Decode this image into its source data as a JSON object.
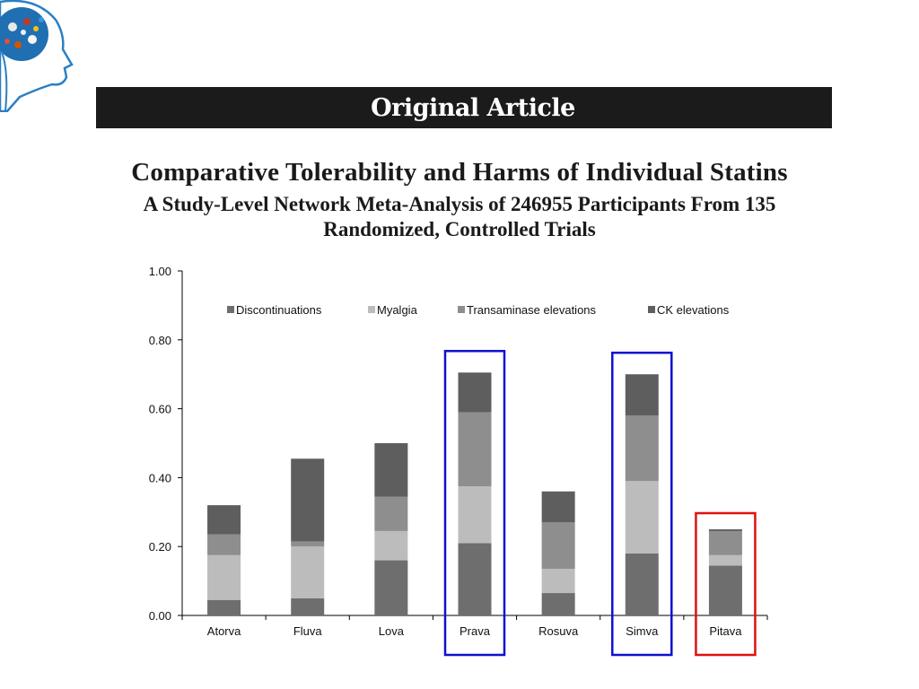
{
  "header": {
    "banner_text": "Original Article",
    "title": "Comparative Tolerability and Harms of Individual Statins",
    "subtitle_line1": "A Study-Level Network Meta-Analysis of 246955 Participants From 135",
    "subtitle_line2": "Randomized, Controlled Trials"
  },
  "highlights": [
    {
      "category": "Prava",
      "color": "#1010d0"
    },
    {
      "category": "Simva",
      "color": "#1010d0"
    },
    {
      "category": "Pitava",
      "color": "#e01010"
    }
  ],
  "chart_data": {
    "type": "bar",
    "stacked": true,
    "categories": [
      "Atorva",
      "Fluva",
      "Lova",
      "Prava",
      "Rosuva",
      "Simva",
      "Pitava"
    ],
    "series": [
      {
        "name": "Discontinuations",
        "color": "#6e6e6e",
        "values": [
          0.045,
          0.05,
          0.16,
          0.21,
          0.065,
          0.18,
          0.145
        ]
      },
      {
        "name": "Myalgia",
        "color": "#bcbcbc",
        "values": [
          0.13,
          0.15,
          0.085,
          0.165,
          0.07,
          0.21,
          0.03
        ]
      },
      {
        "name": "Transaminase elevations",
        "color": "#8e8e8e",
        "values": [
          0.06,
          0.015,
          0.1,
          0.215,
          0.135,
          0.19,
          0.07
        ]
      },
      {
        "name": "CK elevations",
        "color": "#5e5e5e",
        "values": [
          0.085,
          0.24,
          0.155,
          0.115,
          0.09,
          0.12,
          0.005
        ]
      }
    ],
    "y_ticks": [
      "0.00",
      "0.20",
      "0.40",
      "0.60",
      "0.80",
      "1.00"
    ],
    "ylim": [
      0,
      1
    ],
    "xlabel": "",
    "ylabel": "",
    "grid": false,
    "legend_position": "top"
  }
}
